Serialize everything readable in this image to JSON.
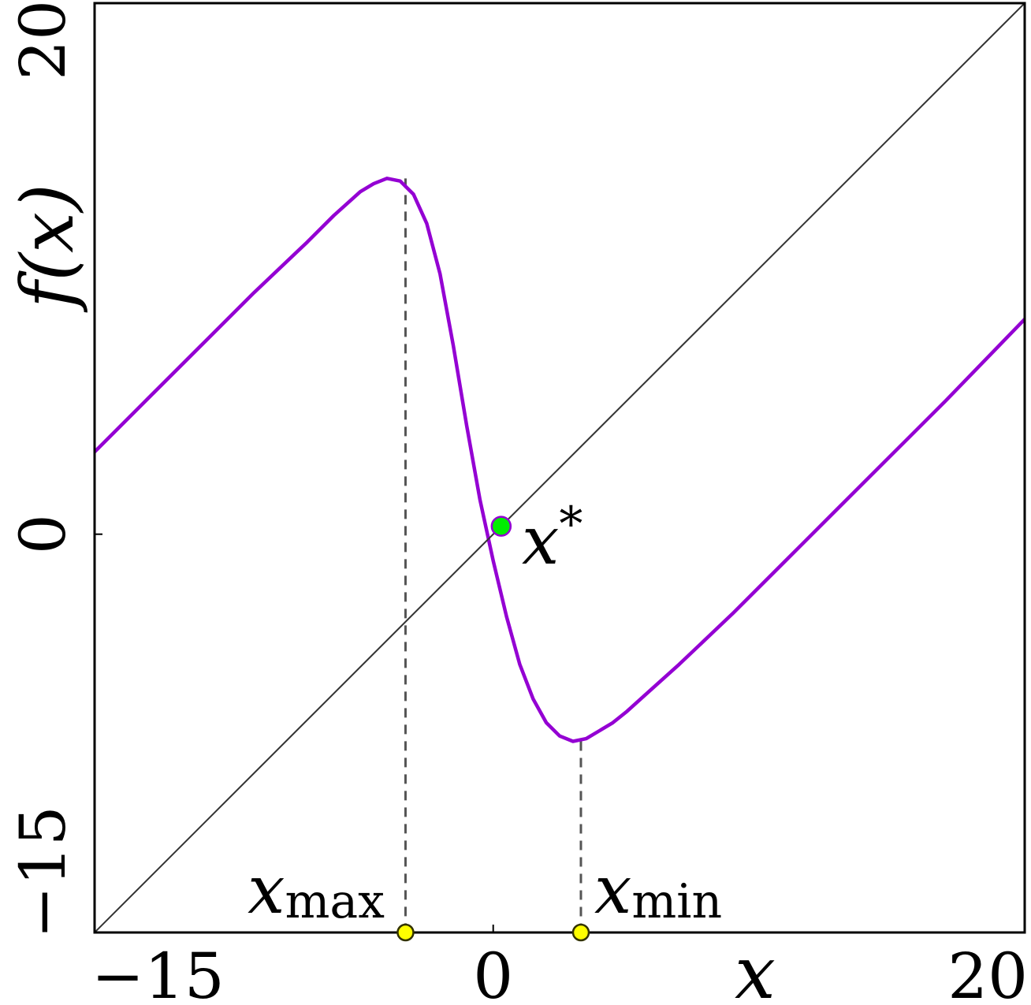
{
  "chart_data": {
    "type": "line",
    "title": "",
    "xlabel": "x",
    "ylabel": "f(x)",
    "xlim": [
      -15,
      20
    ],
    "ylim": [
      -15,
      20
    ],
    "xticks": [
      {
        "value": -15,
        "label": "−15"
      },
      {
        "value": 0,
        "label": "0"
      },
      {
        "value": 20,
        "label": "20"
      }
    ],
    "yticks": [
      {
        "value": -15,
        "label": "−15"
      },
      {
        "value": 0,
        "label": "0"
      },
      {
        "value": 20,
        "label": "20"
      }
    ],
    "grid": false,
    "series": [
      {
        "color": "#9400D3",
        "x": [
          -15,
          -13,
          -11,
          -9,
          -7,
          -6,
          -5,
          -4.5,
          -4,
          -3.5,
          -3,
          -2.5,
          -2,
          -1.5,
          -1,
          -0.5,
          0,
          0.5,
          1,
          1.5,
          2,
          2.5,
          3,
          3.5,
          4,
          4.5,
          5,
          6,
          7,
          9,
          11,
          13,
          15,
          17,
          20
        ],
        "y": [
          3.1,
          5.1,
          7.1,
          9.1,
          11,
          12,
          12.9,
          13.2,
          13.4,
          13.3,
          12.8,
          11.7,
          9.8,
          7.1,
          4.1,
          1.3,
          -1.0,
          -3.1,
          -4.9,
          -6.2,
          -7.1,
          -7.6,
          -7.8,
          -7.7,
          -7.4,
          -7.1,
          -6.7,
          -5.8,
          -4.9,
          -3.0,
          -1.0,
          1.0,
          3.0,
          5.0,
          8.1
        ]
      },
      {
        "color": "#333333",
        "x": [
          -15,
          20
        ],
        "y": [
          -15,
          20
        ]
      }
    ],
    "vlines": [
      {
        "x": -3.3,
        "y_top": 13.4,
        "color": "#555555",
        "style": "dashed"
      },
      {
        "x": 3.3,
        "y_top": -7.8,
        "color": "#555555",
        "style": "dashed"
      }
    ],
    "points": [
      {
        "x": 0.3,
        "y": 0.3,
        "color": "#00EE00",
        "label_main": "x",
        "label_sup": "*"
      },
      {
        "x": -3.3,
        "y": -15,
        "color": "#FFFF00",
        "label_main": "x",
        "label_sub": "max"
      },
      {
        "x": 3.3,
        "y": -15,
        "color": "#FFFF00",
        "label_main": "x",
        "label_sub": "min"
      }
    ]
  }
}
